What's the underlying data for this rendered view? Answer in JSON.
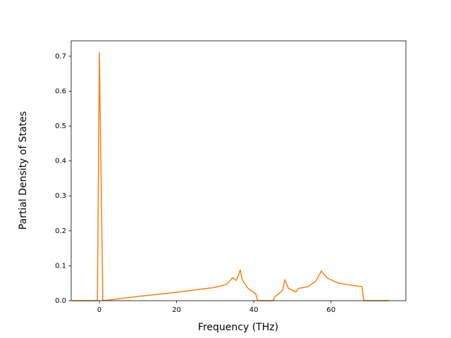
{
  "chart_data": {
    "type": "line",
    "xlabel": "Frequency (THz)",
    "ylabel": "Partial Density of States",
    "x": [
      -7,
      -0.5,
      0,
      0.9,
      1,
      10,
      20,
      30,
      33,
      34.5,
      35.5,
      36.5,
      37,
      38.5,
      40.5,
      41,
      45,
      45.5,
      46.5,
      47.5,
      48,
      49,
      51,
      51.5,
      54,
      56,
      57.5,
      59,
      62,
      65,
      68,
      68.5,
      75
    ],
    "values": [
      0,
      0,
      0.71,
      0,
      0,
      0.012,
      0.024,
      0.038,
      0.047,
      0.066,
      0.058,
      0.088,
      0.06,
      0.035,
      0.02,
      0,
      0,
      0.012,
      0.02,
      0.03,
      0.06,
      0.035,
      0.025,
      0.035,
      0.04,
      0.055,
      0.085,
      0.065,
      0.05,
      0.045,
      0.04,
      0,
      0
    ],
    "color": "#ff7f0e",
    "xlim": [
      -7.3,
      79.4
    ],
    "ylim": [
      0,
      0.744
    ],
    "xticks": [
      0,
      20,
      40,
      60
    ],
    "yticks": [
      {
        "value": 0,
        "label": "0.0"
      },
      0.1,
      0.2,
      0.3,
      0.4,
      0.5,
      0.6,
      0.7
    ],
    "grid": false
  }
}
